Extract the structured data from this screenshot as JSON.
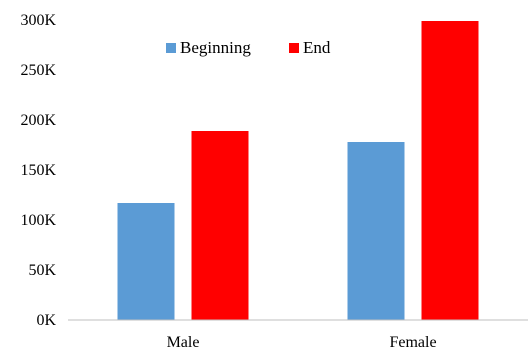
{
  "chart_data": {
    "type": "bar",
    "categories": [
      "Male",
      "Female"
    ],
    "series": [
      {
        "name": "Beginning",
        "color": "#5B9BD5",
        "values": [
          117000,
          178000
        ]
      },
      {
        "name": "End",
        "color": "#FF0000",
        "values": [
          189000,
          299000
        ]
      }
    ],
    "ylim": [
      0,
      300000
    ],
    "yticks": [
      {
        "value": 0,
        "label": "0K"
      },
      {
        "value": 50000,
        "label": "50K"
      },
      {
        "value": 100000,
        "label": "100K"
      },
      {
        "value": 150000,
        "label": "150K"
      },
      {
        "value": 200000,
        "label": "200K"
      },
      {
        "value": 250000,
        "label": "250K"
      },
      {
        "value": 300000,
        "label": "300K"
      }
    ],
    "grid": false,
    "legend_position": "top-left"
  }
}
